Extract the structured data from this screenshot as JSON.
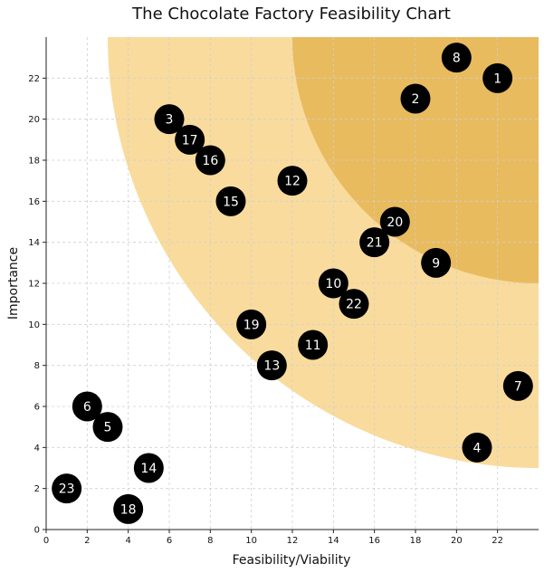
{
  "chart_data": {
    "type": "scatter",
    "title": "The Chocolate Factory Feasibility Chart",
    "xlabel": "Feasibility/Viability",
    "ylabel": "Importance",
    "xlim": [
      0,
      24
    ],
    "ylim": [
      0,
      24
    ],
    "x_ticks": [
      0,
      2,
      4,
      6,
      8,
      10,
      12,
      14,
      16,
      18,
      20,
      22
    ],
    "y_ticks": [
      0,
      2,
      4,
      6,
      8,
      10,
      12,
      14,
      16,
      18,
      20,
      22
    ],
    "grid": true,
    "zones": [
      {
        "center": [
          24,
          24
        ],
        "radius": 21,
        "color": "#f5c35c",
        "opacity": 0.6
      },
      {
        "center": [
          24,
          24
        ],
        "radius": 12,
        "color": "#e3b04b",
        "opacity": 0.75
      }
    ],
    "point_color": "#000000",
    "points": [
      {
        "label": "1",
        "x": 22,
        "y": 22
      },
      {
        "label": "2",
        "x": 18,
        "y": 21
      },
      {
        "label": "3",
        "x": 6,
        "y": 20
      },
      {
        "label": "4",
        "x": 21,
        "y": 4
      },
      {
        "label": "5",
        "x": 3,
        "y": 5
      },
      {
        "label": "6",
        "x": 2,
        "y": 6
      },
      {
        "label": "7",
        "x": 23,
        "y": 7
      },
      {
        "label": "8",
        "x": 20,
        "y": 23
      },
      {
        "label": "9",
        "x": 19,
        "y": 13
      },
      {
        "label": "10",
        "x": 14,
        "y": 12
      },
      {
        "label": "11",
        "x": 13,
        "y": 9
      },
      {
        "label": "12",
        "x": 12,
        "y": 17
      },
      {
        "label": "13",
        "x": 11,
        "y": 8
      },
      {
        "label": "14",
        "x": 5,
        "y": 3
      },
      {
        "label": "15",
        "x": 9,
        "y": 16
      },
      {
        "label": "16",
        "x": 8,
        "y": 18
      },
      {
        "label": "17",
        "x": 7,
        "y": 19
      },
      {
        "label": "18",
        "x": 4,
        "y": 1
      },
      {
        "label": "19",
        "x": 10,
        "y": 10
      },
      {
        "label": "20",
        "x": 17,
        "y": 15
      },
      {
        "label": "21",
        "x": 16,
        "y": 14
      },
      {
        "label": "22",
        "x": 15,
        "y": 11
      },
      {
        "label": "23",
        "x": 1,
        "y": 2
      }
    ]
  }
}
